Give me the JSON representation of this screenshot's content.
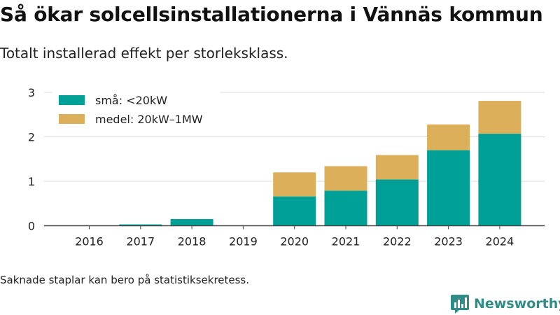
{
  "title": "Så ökar solcellsinstallationerna i Vännäs kommun",
  "subtitle": "Totalt installerad effekt per storleksklass.",
  "footnote": "Saknade staplar kan bero på statistiksekretess.",
  "brand": {
    "name": "Newsworthy",
    "icon": "newsworthy-logo-icon",
    "color": "#2f8d86"
  },
  "chart_data": {
    "type": "bar",
    "stacked": true,
    "categories": [
      "2016",
      "2017",
      "2018",
      "2019",
      "2020",
      "2021",
      "2022",
      "2023",
      "2024"
    ],
    "series": [
      {
        "name": "små: <20kW",
        "color": "#00a096",
        "values": [
          0,
          0.03,
          0.15,
          0,
          0.66,
          0.79,
          1.04,
          1.7,
          2.07
        ]
      },
      {
        "name": "medel: 20kW–1MW",
        "color": "#dcaf5a",
        "values": [
          0,
          0,
          0,
          0,
          0.54,
          0.55,
          0.55,
          0.58,
          0.74
        ]
      }
    ],
    "yticks": [
      0,
      1,
      2,
      3
    ],
    "ylim": [
      0,
      3
    ],
    "grid": true,
    "legend_position": "top-left"
  }
}
